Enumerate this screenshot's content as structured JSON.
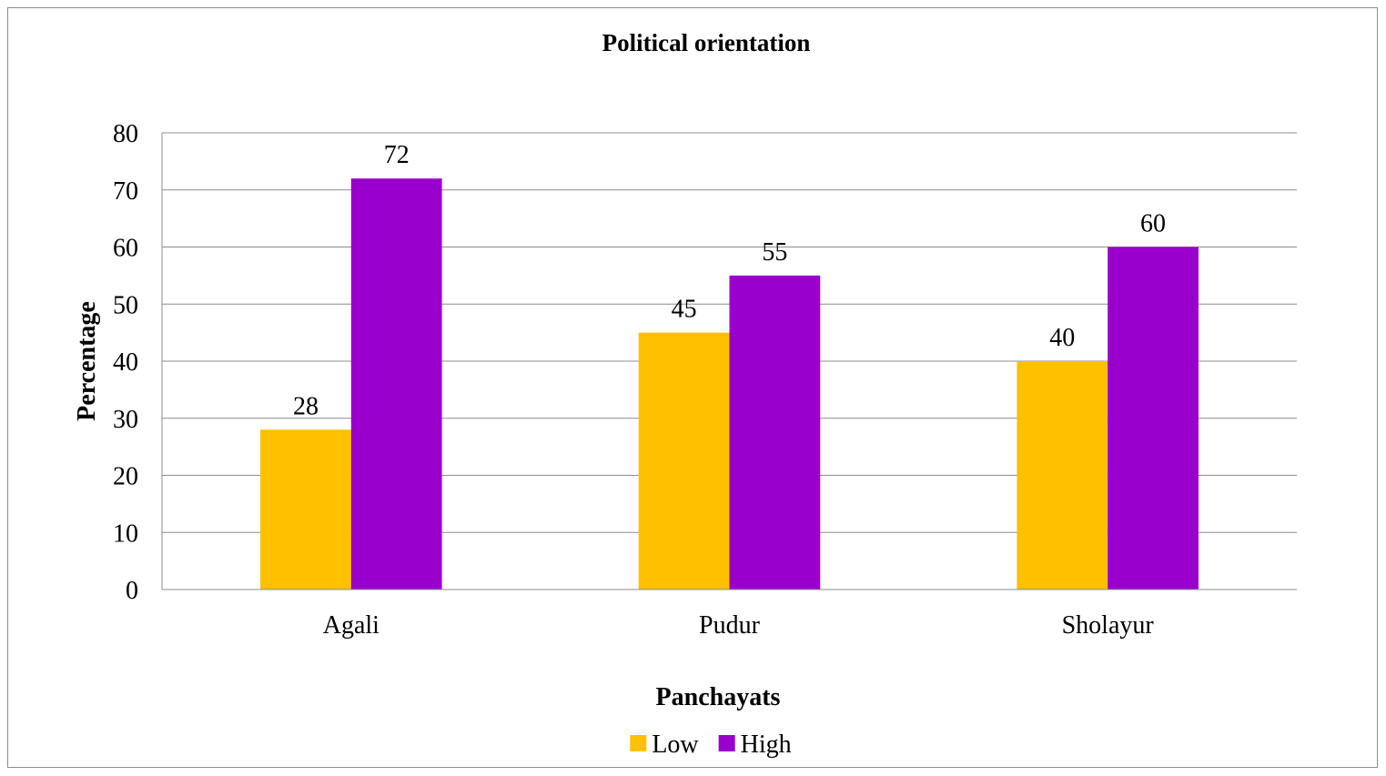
{
  "chart_data": {
    "type": "bar",
    "title": "Political orientation",
    "xlabel": "Panchayats",
    "ylabel": "Percentage",
    "categories": [
      "Agali",
      "Pudur",
      "Sholayur"
    ],
    "series": [
      {
        "name": "Low",
        "values": [
          28,
          45,
          40
        ],
        "color": "#FFC000"
      },
      {
        "name": "High",
        "values": [
          72,
          55,
          60
        ],
        "color": "#9900CC"
      }
    ],
    "ylim": [
      0,
      80
    ],
    "yticks": [
      0,
      10,
      20,
      30,
      40,
      50,
      60,
      70,
      80
    ],
    "grid": true,
    "legend_position": "bottom",
    "data_labels": true
  }
}
